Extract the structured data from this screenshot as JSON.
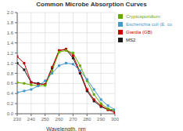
{
  "chart_data": {
    "type": "line",
    "title": "Common Microbe Absorption Curves",
    "xlabel": "Wavelength, nm",
    "x": [
      230,
      235,
      240,
      245,
      250,
      255,
      260,
      265,
      270,
      275,
      280,
      285,
      290,
      295,
      300
    ],
    "series": [
      {
        "name": "MS2",
        "color": "#1a1a1a",
        "marker": "square",
        "values": [
          1.0,
          0.87,
          0.62,
          0.6,
          0.58,
          0.9,
          1.25,
          1.27,
          1.1,
          0.8,
          0.45,
          0.25,
          0.14,
          0.08,
          0.06
        ]
      },
      {
        "name": "Giardia (GB)",
        "color": "#cc0000",
        "marker": "square",
        "values": [
          1.13,
          1.0,
          0.62,
          0.58,
          0.58,
          0.92,
          1.25,
          1.28,
          1.15,
          0.83,
          0.48,
          0.28,
          0.16,
          0.08,
          0.02
        ]
      },
      {
        "name": "Cryptosporidium",
        "color": "#66aa00",
        "marker": "square",
        "values": [
          0.62,
          0.6,
          0.57,
          0.55,
          0.56,
          0.85,
          1.22,
          1.25,
          1.2,
          0.95,
          0.65,
          0.38,
          0.2,
          0.1,
          0.07
        ]
      },
      {
        "name": "Escherichia coli (E. co",
        "color": "#4499cc",
        "marker": "square",
        "values": [
          0.42,
          0.45,
          0.48,
          0.55,
          0.65,
          0.8,
          0.95,
          1.0,
          0.98,
          0.85,
          0.68,
          0.48,
          0.28,
          0.16,
          0.08
        ]
      }
    ],
    "xlim": [
      230,
      300
    ],
    "ylim": [
      0,
      2
    ],
    "xticks": [
      230,
      240,
      250,
      260,
      270,
      280,
      290,
      300
    ],
    "yticks": [
      {
        "value": 0,
        "label": "0.0"
      },
      0.2,
      0.4,
      0.6,
      0.8,
      {
        "value": 1.0,
        "label": "1.0"
      },
      1.2,
      1.4,
      1.6,
      1.8,
      {
        "value": 2.0,
        "label": "2.0"
      }
    ],
    "grid": true,
    "legend": "right"
  }
}
